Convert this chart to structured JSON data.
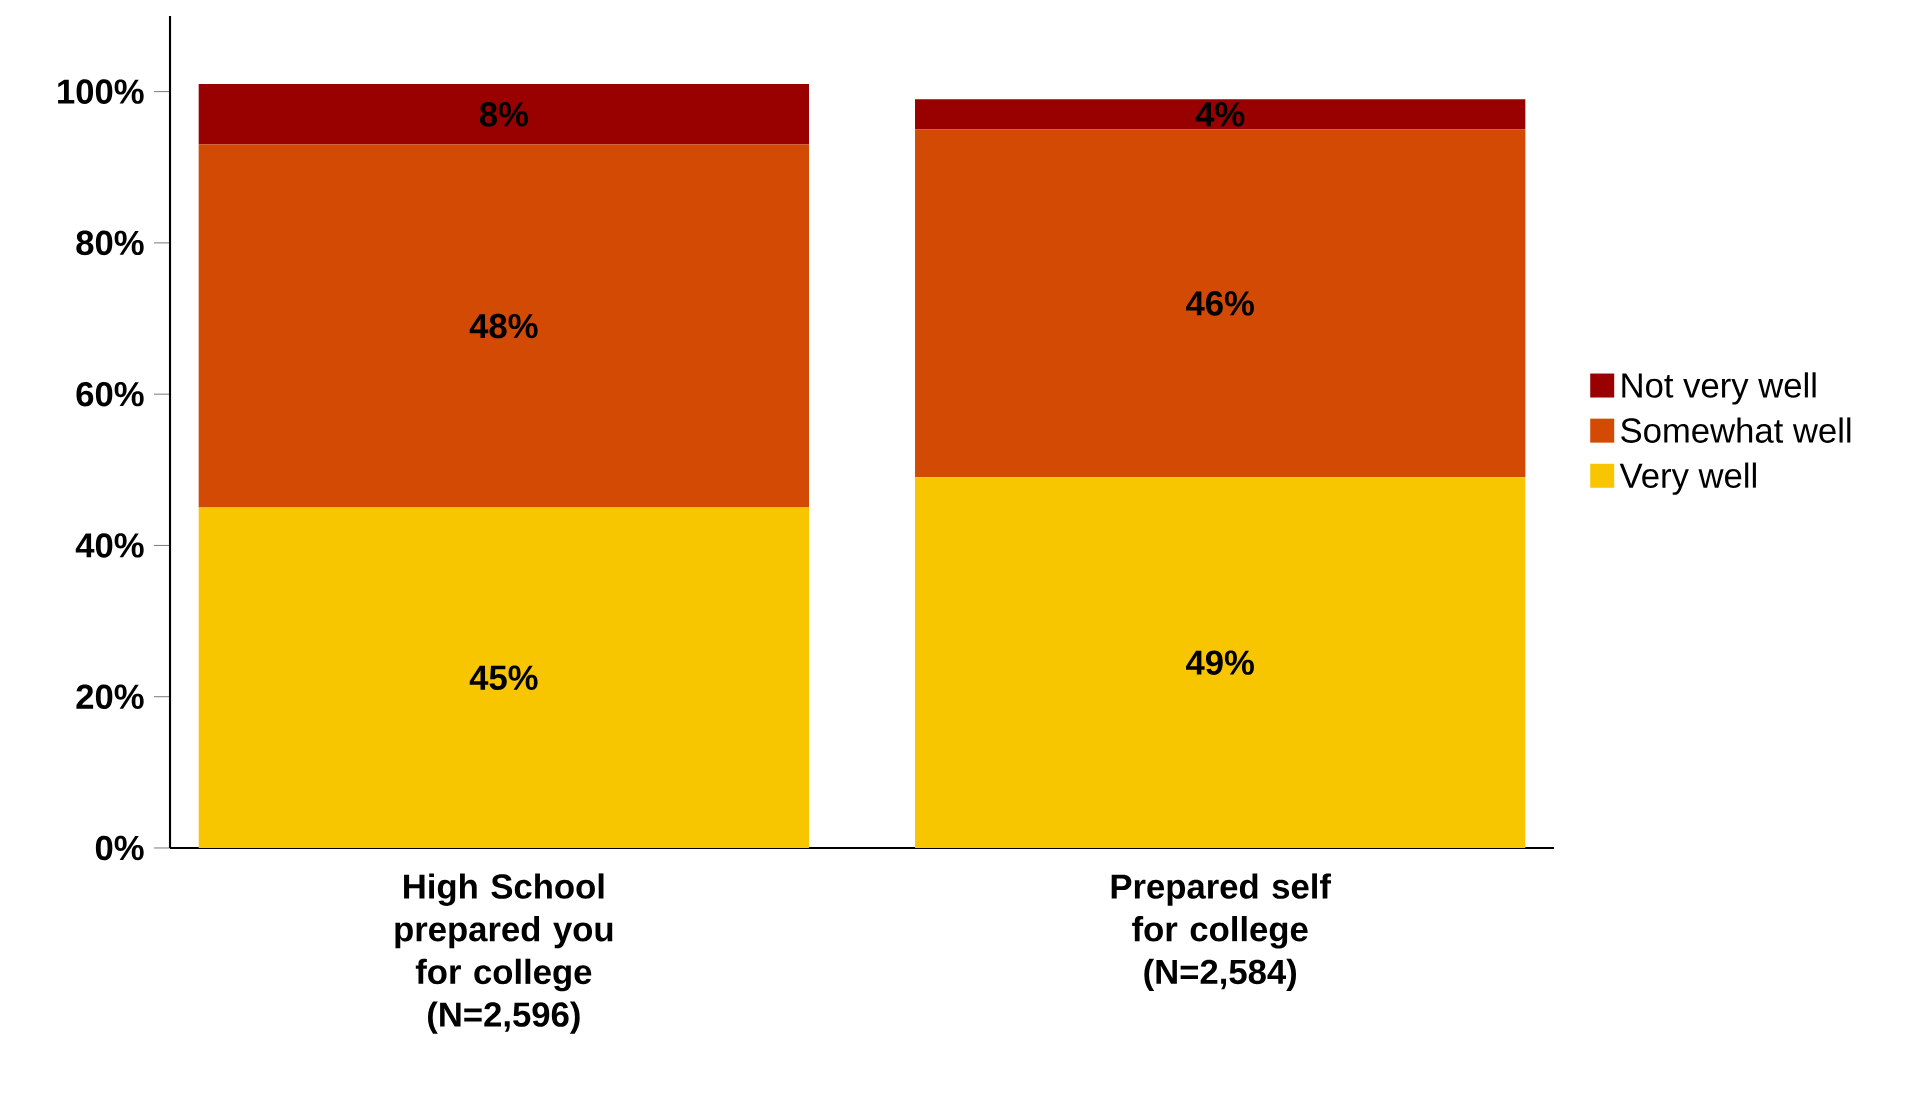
{
  "chart_data": {
    "type": "bar",
    "stacked": true,
    "categories": [
      "High School prepared you for college (N=2,596)",
      "Prepared self for college (N=2,584)"
    ],
    "series": [
      {
        "name": "Very well",
        "color": "#f7c600",
        "values": [
          45,
          49
        ],
        "value_labels": [
          "45%",
          "49%"
        ]
      },
      {
        "name": "Somewhat well",
        "color": "#d24a04",
        "values": [
          48,
          46
        ],
        "value_labels": [
          "48%",
          "46%"
        ]
      },
      {
        "name": "Not very well",
        "color": "#990000",
        "values": [
          8,
          4
        ],
        "value_labels": [
          "8%",
          "4%"
        ]
      }
    ],
    "ylim": [
      0,
      110
    ],
    "yticks": [
      {
        "value": 0,
        "label": "0%"
      },
      {
        "value": 20,
        "label": "20%"
      },
      {
        "value": 40,
        "label": "40%"
      },
      {
        "value": 60,
        "label": "60%"
      },
      {
        "value": 80,
        "label": "80%"
      },
      {
        "value": 100,
        "label": "100%"
      }
    ],
    "legend": "right"
  }
}
